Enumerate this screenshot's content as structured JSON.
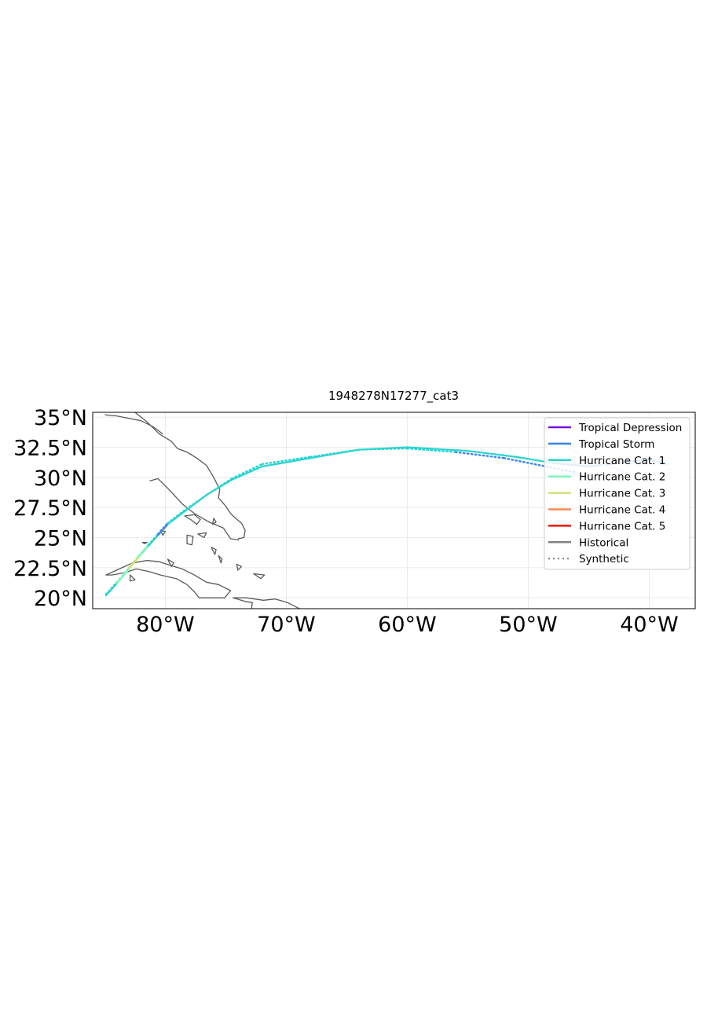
{
  "chart_data": {
    "type": "map",
    "title": "1948278N17277_cat3",
    "xlim": [
      -86,
      -36.2
    ],
    "ylim": [
      19.1,
      35.4
    ],
    "x_ticks": [
      {
        "value": -80,
        "label": "80°W"
      },
      {
        "value": -70,
        "label": "70°W"
      },
      {
        "value": -60,
        "label": "60°W"
      },
      {
        "value": -50,
        "label": "50°W"
      },
      {
        "value": -40,
        "label": "40°W"
      }
    ],
    "y_ticks": [
      {
        "value": 20,
        "label": "20°N"
      },
      {
        "value": 22.5,
        "label": "22.5°N"
      },
      {
        "value": 25,
        "label": "25°N"
      },
      {
        "value": 27.5,
        "label": "27.5°N"
      },
      {
        "value": 30,
        "label": "30°N"
      },
      {
        "value": 32.5,
        "label": "32.5°N"
      },
      {
        "value": 35,
        "label": "35°N"
      }
    ],
    "grid": true,
    "legend_position": "top-right",
    "legend": [
      {
        "label": "Tropical Depression",
        "color": "#7a10e8",
        "style": "solid"
      },
      {
        "label": "Tropical Storm",
        "color": "#3a84e6",
        "style": "solid"
      },
      {
        "label": "Hurricane Cat. 1",
        "color": "#2ad4cf",
        "style": "solid"
      },
      {
        "label": "Hurricane Cat. 2",
        "color": "#7ff5b8",
        "style": "solid"
      },
      {
        "label": "Hurricane Cat. 3",
        "color": "#cde07c",
        "style": "solid"
      },
      {
        "label": "Hurricane Cat. 4",
        "color": "#fb8a50",
        "style": "solid"
      },
      {
        "label": "Hurricane Cat. 5",
        "color": "#e8160c",
        "style": "solid"
      },
      {
        "label": "Historical",
        "color": "#808080",
        "style": "solid"
      },
      {
        "label": "Synthetic",
        "color": "#808080",
        "style": "dotted"
      }
    ],
    "category_colors": {
      "TD": "#7a10e8",
      "TS": "#3a84e6",
      "C1": "#2ad4cf",
      "C2": "#7ff5b8",
      "C3": "#cde07c",
      "C4": "#fb8a50",
      "C5": "#e8160c",
      "dissipating": "#d9c8fb"
    },
    "historical_track": [
      {
        "lon": -84.9,
        "lat": 20.2,
        "cat": "C1"
      },
      {
        "lon": -84.0,
        "lat": 21.2,
        "cat": "C2"
      },
      {
        "lon": -83.0,
        "lat": 22.4,
        "cat": "C3"
      },
      {
        "lon": -82.2,
        "lat": 23.4,
        "cat": "C2"
      },
      {
        "lon": -81.4,
        "lat": 24.3,
        "cat": "C1"
      },
      {
        "lon": -80.6,
        "lat": 25.2,
        "cat": "TS"
      },
      {
        "lon": -79.8,
        "lat": 26.1,
        "cat": "C1"
      },
      {
        "lon": -78.5,
        "lat": 27.1,
        "cat": "C1"
      },
      {
        "lon": -76.5,
        "lat": 28.6,
        "cat": "C1"
      },
      {
        "lon": -74.5,
        "lat": 29.8,
        "cat": "C1"
      },
      {
        "lon": -72.0,
        "lat": 30.9,
        "cat": "C1"
      },
      {
        "lon": -68.0,
        "lat": 31.6,
        "cat": "C1"
      },
      {
        "lon": -64.0,
        "lat": 32.3,
        "cat": "C1"
      },
      {
        "lon": -60.0,
        "lat": 32.5,
        "cat": "C1"
      },
      {
        "lon": -55.0,
        "lat": 32.2,
        "cat": "C1"
      },
      {
        "lon": -51.0,
        "lat": 31.7,
        "cat": "C1"
      },
      {
        "lon": -48.0,
        "lat": 31.2,
        "cat": "TS"
      },
      {
        "lon": -45.0,
        "lat": 30.9,
        "cat": "TS"
      },
      {
        "lon": -42.5,
        "lat": 31.2,
        "cat": "TS"
      },
      {
        "lon": -40.2,
        "lat": 31.5,
        "cat": "TS"
      },
      {
        "lon": -38.5,
        "lat": 31.1,
        "cat": "dissipating"
      },
      {
        "lon": -38.2,
        "lat": 30.4,
        "cat": "dissipating"
      },
      {
        "lon": -38.9,
        "lat": 29.8,
        "cat": "dissipating"
      },
      {
        "lon": -40.2,
        "lat": 29.7,
        "cat": "dissipating"
      },
      {
        "lon": -41.2,
        "lat": 30.1,
        "cat": "dissipating"
      },
      {
        "lon": -43.0,
        "lat": 30.8,
        "cat": "dissipating"
      },
      {
        "lon": -45.0,
        "lat": 31.5,
        "cat": "dissipating"
      },
      {
        "lon": -46.4,
        "lat": 32.3,
        "cat": "dissipating"
      },
      {
        "lon": -47.2,
        "lat": 33.0,
        "cat": "dissipating"
      }
    ],
    "synthetic_track": [
      {
        "lon": -84.9,
        "lat": 20.3,
        "cat": "C1"
      },
      {
        "lon": -84.0,
        "lat": 21.3,
        "cat": "C2"
      },
      {
        "lon": -83.0,
        "lat": 22.5,
        "cat": "C3"
      },
      {
        "lon": -82.2,
        "lat": 23.5,
        "cat": "C2"
      },
      {
        "lon": -81.4,
        "lat": 24.4,
        "cat": "C1"
      },
      {
        "lon": -80.6,
        "lat": 25.3,
        "cat": "TS"
      },
      {
        "lon": -79.8,
        "lat": 26.2,
        "cat": "C1"
      },
      {
        "lon": -78.5,
        "lat": 27.2,
        "cat": "C1"
      },
      {
        "lon": -76.5,
        "lat": 28.6,
        "cat": "C1"
      },
      {
        "lon": -74.5,
        "lat": 29.9,
        "cat": "C1"
      },
      {
        "lon": -72.0,
        "lat": 31.1,
        "cat": "C1"
      },
      {
        "lon": -68.0,
        "lat": 31.7,
        "cat": "C1"
      },
      {
        "lon": -64.0,
        "lat": 32.3,
        "cat": "C1"
      },
      {
        "lon": -60.0,
        "lat": 32.4,
        "cat": "C1"
      },
      {
        "lon": -56.0,
        "lat": 32.1,
        "cat": "TS"
      },
      {
        "lon": -52.0,
        "lat": 31.6,
        "cat": "TS"
      },
      {
        "lon": -48.5,
        "lat": 30.9,
        "cat": "TS"
      },
      {
        "lon": -46.0,
        "lat": 30.4,
        "cat": "dissipating"
      },
      {
        "lon": -43.5,
        "lat": 30.2,
        "cat": "dissipating"
      },
      {
        "lon": -41.5,
        "lat": 30.2,
        "cat": "dissipating"
      }
    ],
    "coastlines": [
      [
        [
          -82.5,
          35.4
        ],
        [
          -81.5,
          34.6
        ],
        [
          -80.5,
          33.6
        ],
        [
          -79.5,
          33.0
        ],
        [
          -79.0,
          32.4
        ],
        [
          -78.2,
          32.1
        ],
        [
          -77.4,
          31.6
        ],
        [
          -76.6,
          31.0
        ],
        [
          -76.0,
          30.0
        ],
        [
          -75.5,
          29.0
        ],
        [
          -75.6,
          28.3
        ],
        [
          -75.0,
          27.6
        ],
        [
          -74.6,
          27.0
        ],
        [
          -74.3,
          26.7
        ],
        [
          -73.7,
          26.2
        ],
        [
          -73.4,
          25.6
        ],
        [
          -73.5,
          25.0
        ],
        [
          -74.0,
          24.9
        ]
      ],
      [
        [
          -73.9,
          24.8
        ],
        [
          -74.6,
          24.9
        ],
        [
          -75.2,
          25.8
        ],
        [
          -76.4,
          26.3
        ],
        [
          -77.6,
          27.0
        ],
        [
          -78.6,
          27.8
        ],
        [
          -79.7,
          29.0
        ],
        [
          -80.6,
          29.9
        ],
        [
          -81.3,
          29.7
        ]
      ],
      [
        [
          -85.0,
          35.2
        ],
        [
          -84.0,
          35.1
        ],
        [
          -83.0,
          34.9
        ],
        [
          -82.0,
          34.7
        ],
        [
          -81.0,
          34.2
        ],
        [
          -80.2,
          33.6
        ]
      ]
    ],
    "islands": [
      [
        [
          -84.9,
          21.9
        ],
        [
          -83.8,
          22.4
        ],
        [
          -82.7,
          22.9
        ],
        [
          -81.5,
          23.1
        ],
        [
          -80.5,
          23.0
        ],
        [
          -79.6,
          22.7
        ],
        [
          -78.6,
          22.4
        ],
        [
          -77.6,
          21.9
        ],
        [
          -76.6,
          21.3
        ],
        [
          -75.6,
          21.1
        ],
        [
          -74.6,
          20.6
        ],
        [
          -75.1,
          20.0
        ],
        [
          -76.2,
          20.0
        ],
        [
          -77.2,
          20.0
        ],
        [
          -77.6,
          20.5
        ],
        [
          -78.2,
          21.1
        ],
        [
          -79.1,
          21.6
        ],
        [
          -80.4,
          21.9
        ],
        [
          -81.4,
          22.2
        ],
        [
          -82.4,
          22.4
        ],
        [
          -83.3,
          22.1
        ],
        [
          -84.4,
          21.9
        ],
        [
          -84.9,
          21.9
        ]
      ],
      [
        [
          -74.4,
          20.0
        ],
        [
          -73.3,
          20.0
        ],
        [
          -72.6,
          19.9
        ],
        [
          -71.9,
          19.8
        ],
        [
          -70.9,
          19.9
        ],
        [
          -69.9,
          19.6
        ],
        [
          -68.7,
          19.0
        ],
        [
          -69.6,
          18.4
        ],
        [
          -70.7,
          18.4
        ],
        [
          -71.6,
          18.0
        ],
        [
          -72.6,
          18.3
        ],
        [
          -73.6,
          18.4
        ],
        [
          -74.4,
          18.6
        ],
        [
          -72.9,
          19.0
        ],
        [
          -72.8,
          19.6
        ],
        [
          -73.4,
          19.7
        ],
        [
          -74.4,
          20.0
        ]
      ],
      [
        [
          -78.4,
          26.8
        ],
        [
          -77.6,
          26.9
        ],
        [
          -77.1,
          26.5
        ],
        [
          -77.4,
          26.1
        ],
        [
          -77.9,
          26.5
        ],
        [
          -78.4,
          26.8
        ]
      ],
      [
        [
          -78.2,
          25.2
        ],
        [
          -77.7,
          25.1
        ],
        [
          -77.8,
          24.4
        ],
        [
          -78.2,
          24.5
        ],
        [
          -78.2,
          25.2
        ]
      ],
      [
        [
          -77.3,
          25.3
        ],
        [
          -76.6,
          25.4
        ],
        [
          -76.8,
          25.0
        ],
        [
          -77.3,
          25.3
        ]
      ],
      [
        [
          -76.2,
          24.2
        ],
        [
          -75.8,
          24.0
        ],
        [
          -75.9,
          23.6
        ],
        [
          -76.2,
          24.2
        ]
      ],
      [
        [
          -75.6,
          23.5
        ],
        [
          -75.3,
          23.2
        ],
        [
          -75.4,
          22.9
        ],
        [
          -75.6,
          23.5
        ]
      ],
      [
        [
          -74.1,
          22.8
        ],
        [
          -73.7,
          22.6
        ],
        [
          -74.0,
          22.3
        ],
        [
          -74.1,
          22.8
        ]
      ],
      [
        [
          -72.7,
          22.0
        ],
        [
          -71.8,
          21.9
        ],
        [
          -72.1,
          21.6
        ],
        [
          -72.7,
          22.0
        ]
      ],
      [
        [
          -82.9,
          21.9
        ],
        [
          -82.5,
          21.5
        ],
        [
          -82.9,
          21.4
        ],
        [
          -82.9,
          21.9
        ]
      ],
      [
        [
          -79.8,
          23.2
        ],
        [
          -79.3,
          22.9
        ],
        [
          -79.5,
          22.6
        ],
        [
          -79.8,
          23.2
        ]
      ],
      [
        [
          -76.0,
          26.6
        ],
        [
          -75.8,
          26.3
        ],
        [
          -76.1,
          26.1
        ],
        [
          -76.0,
          26.6
        ]
      ],
      [
        [
          -80.4,
          25.6
        ],
        [
          -80.0,
          25.5
        ],
        [
          -80.2,
          25.2
        ],
        [
          -80.4,
          25.6
        ]
      ],
      [
        [
          -81.9,
          24.6
        ],
        [
          -81.5,
          24.6
        ],
        [
          -81.7,
          24.5
        ],
        [
          -81.9,
          24.6
        ]
      ]
    ]
  }
}
